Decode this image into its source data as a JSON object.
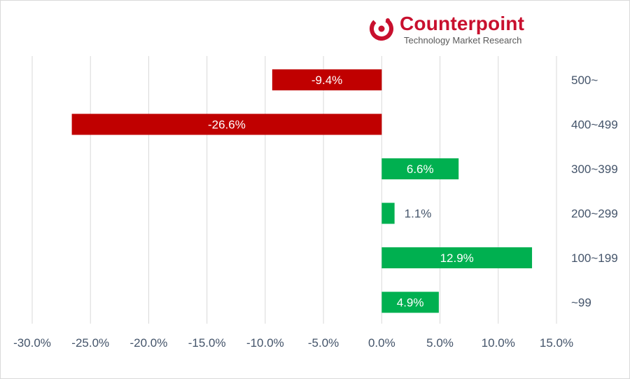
{
  "logo": {
    "name": "Counterpoint",
    "tagline": "Technology Market Research",
    "brand_color": "#c8102e",
    "icon": "counterpoint-logo-icon"
  },
  "chart_data": {
    "type": "bar",
    "orientation": "horizontal",
    "categories": [
      "500~",
      "400~499",
      "300~399",
      "200~299",
      "100~199",
      "~99"
    ],
    "values": [
      -9.4,
      -26.6,
      6.6,
      1.1,
      12.9,
      4.9
    ],
    "data_labels": [
      "-9.4%",
      "-26.6%",
      "6.6%",
      "1.1%",
      "12.9%",
      "4.9%"
    ],
    "x_ticks": [
      "-30.0%",
      "-25.0%",
      "-20.0%",
      "-15.0%",
      "-10.0%",
      "-5.0%",
      "0.0%",
      "5.0%",
      "10.0%",
      "15.0%"
    ],
    "xlim": [
      -30,
      15
    ],
    "grid": true,
    "category_axis_side": "right",
    "colors": {
      "negative": "#c00000",
      "positive": "#00b050",
      "grid": "#d9d9d9",
      "label": "#44546a"
    }
  }
}
